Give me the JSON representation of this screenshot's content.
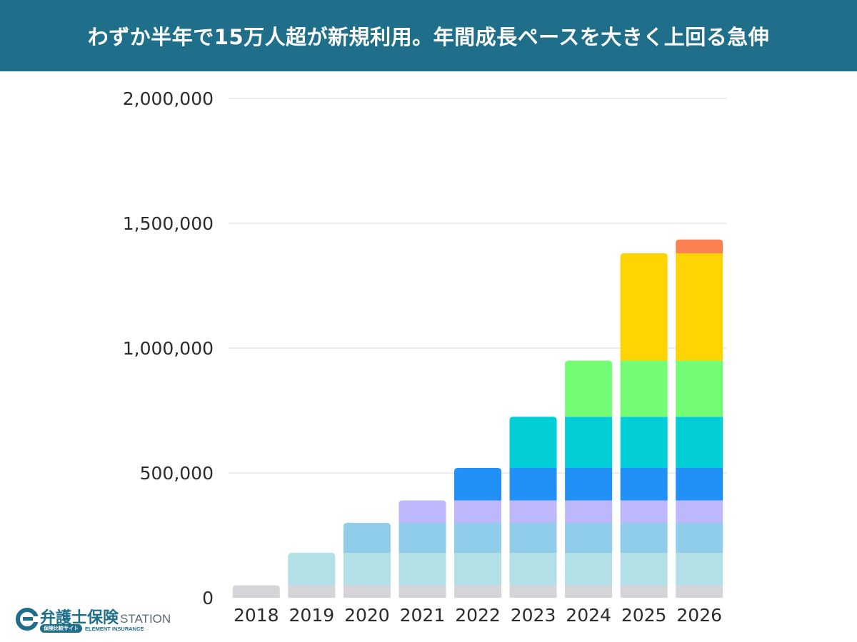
{
  "header": {
    "title": "わずか半年で15万人超が新規利用。年間成長ペースを大きく上回る急伸"
  },
  "logo": {
    "name": "弁護士保険",
    "station": "STATION",
    "tagline": "保険比較サイト",
    "company": "ELEMENT INSURANCE"
  },
  "colors": {
    "header_bg": "#1f6f8b",
    "gridline": "#d9d9d9",
    "segments": [
      "#d6d4d8",
      "#b3dfe6",
      "#8fcdea",
      "#bdb8fb",
      "#2190f7",
      "#01ced6",
      "#74fd74",
      "#fed402",
      "#fb8152"
    ]
  },
  "chart_data": {
    "type": "bar",
    "stacked": true,
    "categories": [
      "2018",
      "2019",
      "2020",
      "2021",
      "2022",
      "2023",
      "2024",
      "2025",
      "2026"
    ],
    "ylim": [
      0,
      2000000
    ],
    "yticks": [
      0,
      500000,
      1000000,
      1500000,
      2000000
    ],
    "ytick_labels": [
      "0",
      "500,000",
      "1,000,000",
      "1,500,000",
      "2,000,000"
    ],
    "grid": true,
    "title": "",
    "xlabel": "",
    "ylabel": "",
    "series": [
      {
        "values": [
          50000,
          50000,
          50000,
          50000,
          50000,
          50000,
          50000,
          50000,
          50000
        ]
      },
      {
        "values": [
          0,
          130000,
          130000,
          130000,
          130000,
          130000,
          130000,
          130000,
          130000
        ]
      },
      {
        "values": [
          0,
          0,
          120000,
          120000,
          120000,
          120000,
          120000,
          120000,
          120000
        ]
      },
      {
        "values": [
          0,
          0,
          0,
          90000,
          90000,
          90000,
          90000,
          90000,
          90000
        ]
      },
      {
        "values": [
          0,
          0,
          0,
          0,
          130000,
          130000,
          130000,
          130000,
          130000
        ]
      },
      {
        "values": [
          0,
          0,
          0,
          0,
          0,
          205000,
          205000,
          205000,
          205000
        ]
      },
      {
        "values": [
          0,
          0,
          0,
          0,
          0,
          0,
          225000,
          225000,
          225000
        ]
      },
      {
        "values": [
          0,
          0,
          0,
          0,
          0,
          0,
          0,
          430000,
          430000
        ]
      },
      {
        "values": [
          0,
          0,
          0,
          0,
          0,
          0,
          0,
          0,
          55000
        ]
      }
    ]
  }
}
